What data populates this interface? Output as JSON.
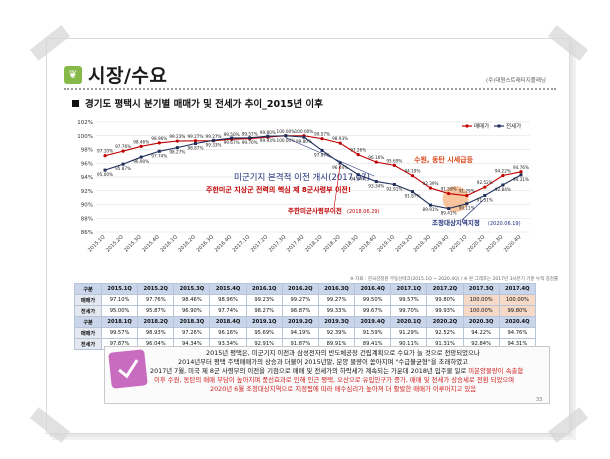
{
  "header": {
    "title": "시장/수요",
    "brand": "(주)대원스트래티지플래닝",
    "section": "경기도 평택시 분기별 매매가 및 전세가 추이_2015년 이후"
  },
  "chart_data": {
    "type": "line",
    "categories": [
      "2015.1Q",
      "2015.2Q",
      "2015.3Q",
      "2015.4Q",
      "2016.1Q",
      "2016.2Q",
      "2016.3Q",
      "2016.4Q",
      "2017.1Q",
      "2017.2Q",
      "2017.3Q",
      "2017.4Q",
      "2018.1Q",
      "2018.2Q",
      "2018.3Q",
      "2018.4Q",
      "2019.1Q",
      "2019.2Q",
      "2019.3Q",
      "2019.4Q",
      "2020.1Q",
      "2020.2Q",
      "2020.3Q",
      "2020.4Q"
    ],
    "series": [
      {
        "name": "매매가",
        "color": "#c00000",
        "values": [
          97.1,
          97.76,
          98.46,
          98.96,
          99.23,
          99.27,
          99.27,
          99.5,
          99.57,
          99.8,
          100.0,
          100.0,
          99.57,
          98.93,
          97.26,
          96.16,
          95.69,
          94.19,
          92.39,
          91.59,
          91.29,
          92.52,
          94.22,
          94.76
        ]
      },
      {
        "name": "전세가",
        "color": "#1f2f5a",
        "values": [
          95.0,
          95.87,
          96.9,
          97.74,
          98.27,
          98.87,
          99.33,
          99.67,
          99.7,
          99.93,
          100.0,
          99.8,
          97.87,
          96.04,
          94.34,
          93.34,
          92.91,
          91.87,
          89.91,
          89.41,
          90.11,
          91.31,
          92.84,
          94.31
        ]
      }
    ],
    "ylim": [
      86,
      102
    ],
    "yticks": [
      "86%",
      "88%",
      "90%",
      "92%",
      "94%",
      "96%",
      "98%",
      "100%",
      "102%"
    ],
    "legend": "top-right",
    "annotations": {
      "a1": "미군기지 본격적 이전 개시(2017.07)",
      "a2": "주한미군 지상군 전력의 핵심 제 8군사령부 이전!",
      "a3": "주한미군사령부이전",
      "a3b": "(2018.06.29)",
      "a4": "수원, 동탄 시세급등",
      "a5": "조정대상지역지정",
      "a5b": "(2020.06.19)"
    }
  },
  "source": "※ 자료 : 한국감정원 부동산테크(2015.1Q ~ 2020.4Q) / ※ 본 그래프는 2017년 3사분기 기준 누적 증감률",
  "table": {
    "rows": [
      {
        "type": "hdr",
        "cells": [
          "구분",
          "2015.1Q",
          "2015.2Q",
          "2015.3Q",
          "2015.4Q",
          "2016.1Q",
          "2016.2Q",
          "2016.3Q",
          "2016.4Q",
          "2017.1Q",
          "2017.2Q",
          "2017.3Q",
          "2017.4Q"
        ]
      },
      {
        "type": "data",
        "cells": [
          "매매가",
          "97.10%",
          "97.76%",
          "98.46%",
          "98.96%",
          "99.23%",
          "99.27%",
          "99.27%",
          "99.50%",
          "99.57%",
          "99.80%",
          "100.00%",
          "100.00%"
        ]
      },
      {
        "type": "data",
        "cells": [
          "전세가",
          "95.00%",
          "95.87%",
          "96.90%",
          "97.74%",
          "98.27%",
          "98.87%",
          "99.33%",
          "99.67%",
          "99.70%",
          "99.93%",
          "100.00%",
          "99.80%"
        ]
      },
      {
        "type": "hdr",
        "cells": [
          "구분",
          "2018.1Q",
          "2018.2Q",
          "2018.3Q",
          "2018.4Q",
          "2019.1Q",
          "2019.2Q",
          "2019.3Q",
          "2019.4Q",
          "2020.1Q",
          "2020.2Q",
          "2020.3Q",
          "2020.4Q"
        ]
      },
      {
        "type": "data",
        "cells": [
          "매매가",
          "99.57%",
          "98.93%",
          "97.26%",
          "96.16%",
          "95.69%",
          "94.19%",
          "92.39%",
          "91.59%",
          "91.29%",
          "92.52%",
          "94.22%",
          "94.76%"
        ]
      },
      {
        "type": "data",
        "cells": [
          "전세가",
          "97.87%",
          "96.04%",
          "94.34%",
          "93.34%",
          "92.91%",
          "91.87%",
          "89.91%",
          "89.41%",
          "90.11%",
          "91.31%",
          "92.84%",
          "94.31%"
        ]
      }
    ]
  },
  "summary": {
    "l1": "2015년 평택은, 미군기지 이전과 삼성전자의 반도체공장 건립계획으로 수요가 늘 것으로 전망되었으나",
    "l2": "2014년부터 평택 주택매매가의 상승과 더불어 2015년말, 분양 물량이 쏟아지며 \"수급불균형\"을 초래하였고",
    "l3a": "2017년 7월, 미국 제 8군 사령부의 이전을 기점으로 매매 및 전세가의 하락세가 계속되는 가운데 2018년 입주물 일로 ",
    "l3b": "미분양물량이 속출함",
    "l4": "이후 수원, 동탄의 매매 부담이 높아지며 풍선효과로 인해 인근 평택, 오산으로 유입인구가 증가, 매매 및 전세가 상승세로 전환 되었으며",
    "l5": "2020년 6월 조정대상지역으로 지정됨에 따라 매수심리가 높아져 더 활발한 매매가 이루어지고 있음"
  },
  "page_number": "33"
}
